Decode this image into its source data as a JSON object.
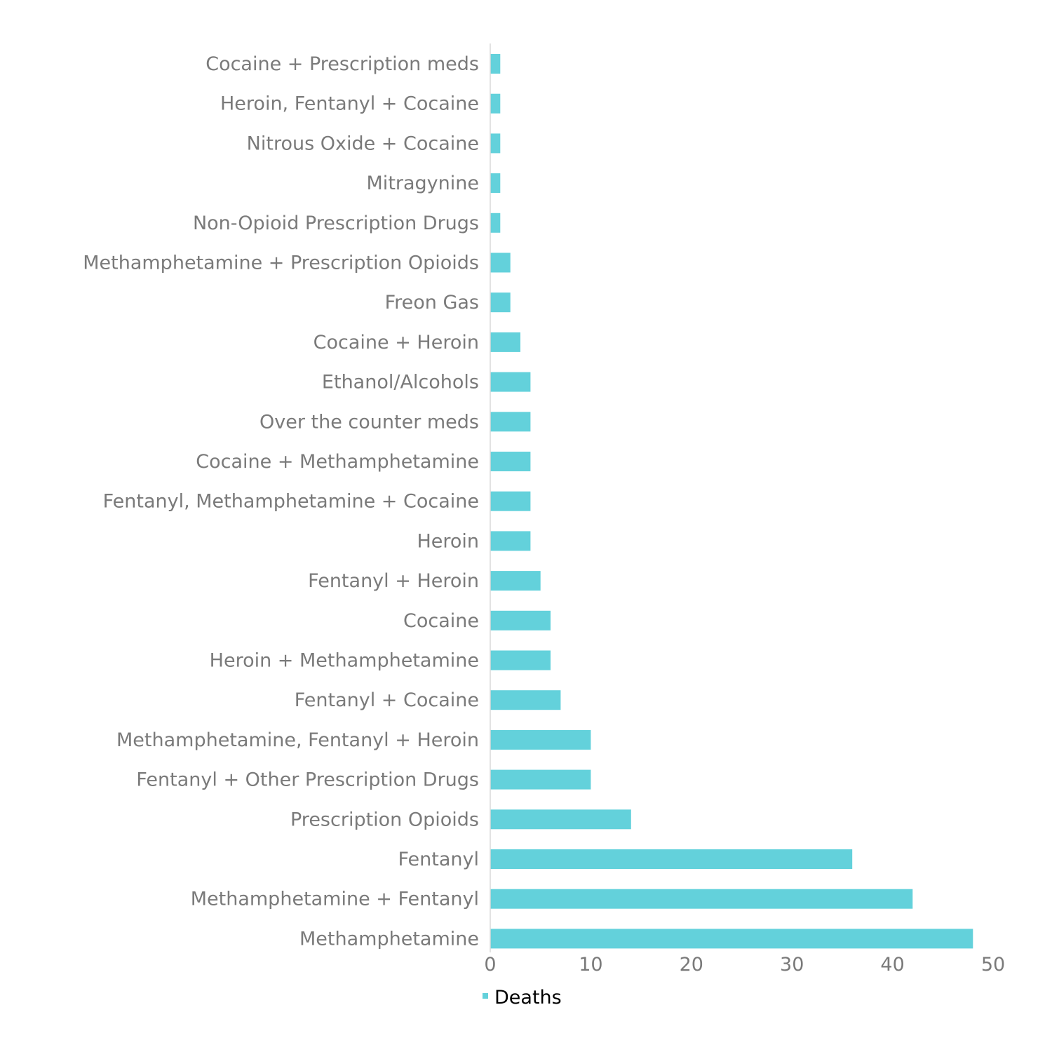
{
  "chart_data": {
    "type": "bar",
    "orientation": "horizontal",
    "categories": [
      "Cocaine + Prescription meds",
      "Heroin, Fentanyl + Cocaine",
      "Nitrous Oxide + Cocaine",
      "Mitragynine",
      "Non-Opioid Prescription Drugs",
      "Methamphetamine + Prescription Opioids",
      "Freon Gas",
      "Cocaine + Heroin",
      "Ethanol/Alcohols",
      "Over the counter meds",
      "Cocaine + Methamphetamine",
      "Fentanyl, Methamphetamine + Cocaine",
      "Heroin",
      "Fentanyl + Heroin",
      "Cocaine",
      "Heroin + Methamphetamine",
      "Fentanyl + Cocaine",
      "Methamphetamine, Fentanyl + Heroin",
      "Fentanyl + Other Prescription Drugs",
      "Prescription Opioids",
      "Fentanyl",
      "Methamphetamine + Fentanyl",
      "Methamphetamine"
    ],
    "series": [
      {
        "name": "Deaths",
        "color": "#63d1db",
        "values": [
          1,
          1,
          1,
          1,
          1,
          2,
          2,
          3,
          4,
          4,
          4,
          4,
          4,
          5,
          6,
          6,
          7,
          10,
          10,
          14,
          36,
          42,
          48
        ]
      }
    ],
    "xlim": [
      0,
      50
    ],
    "xticks": [
      "0",
      "10",
      "20",
      "30",
      "40",
      "50"
    ],
    "legend": {
      "position": "bottom",
      "label": "Deaths"
    },
    "grid": false,
    "colors": {
      "bar": "#63d1db",
      "axis_line": "#d9d9d9",
      "label_text": "#7a7a7a",
      "legend_text": "#000000"
    }
  }
}
